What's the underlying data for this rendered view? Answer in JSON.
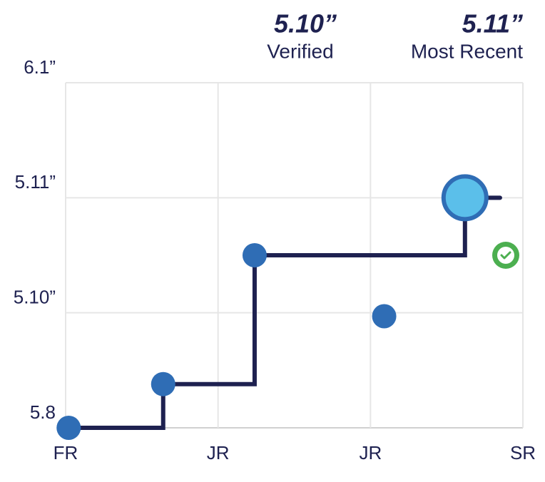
{
  "header": {
    "verified_value": "5.10”",
    "verified_label": "Verified",
    "recent_value": "5.11”",
    "recent_label": "Most Recent"
  },
  "chart_data": {
    "type": "step",
    "xlim": [
      0,
      3
    ],
    "xticks": [
      {
        "value": 0,
        "label": "FR"
      },
      {
        "value": 1,
        "label": "JR"
      },
      {
        "value": 2,
        "label": "JR"
      },
      {
        "value": 3,
        "label": "SR"
      }
    ],
    "ylim": [
      0,
      3
    ],
    "yticks": [
      {
        "value": 0,
        "label": "5.8"
      },
      {
        "value": 1,
        "label": "5.10”"
      },
      {
        "value": 2,
        "label": "5.11”"
      },
      {
        "value": 3,
        "label": "6.1”"
      }
    ],
    "grid": true,
    "series": [
      {
        "color": "#1e2150",
        "x": [
          0.02,
          0.64,
          1.24,
          2.62,
          2.85
        ],
        "values": [
          0,
          0.38,
          1.5,
          2,
          2
        ]
      }
    ],
    "points": {
      "color": "#2f6db5",
      "x": [
        0.02,
        0.64,
        1.24,
        2.09
      ],
      "values": [
        0,
        0.38,
        1.5,
        0.97
      ]
    },
    "latest": {
      "color": "#5bbfea",
      "x": 2.62,
      "y": 2
    }
  }
}
